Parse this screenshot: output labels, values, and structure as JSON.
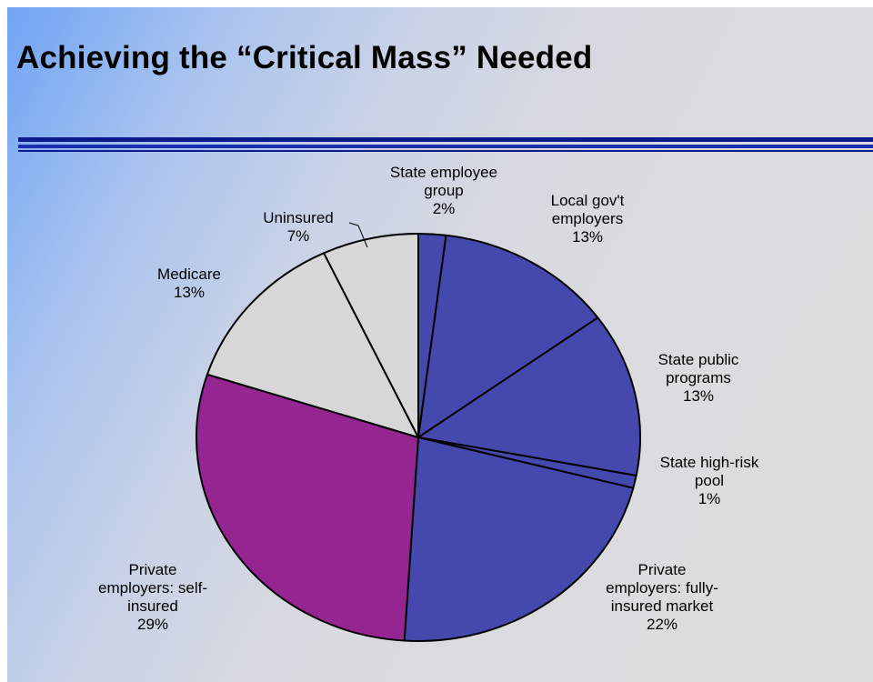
{
  "slide": {
    "title": "Achieving the “Critical Mass” Needed"
  },
  "chart_data": {
    "type": "pie",
    "title": "",
    "start_angle_deg": 0,
    "direction": "clockwise",
    "slices": [
      {
        "label": "State employee group",
        "value": 2,
        "display": "2%",
        "color": "#4549ad",
        "label_lines": [
          "State employee",
          "group",
          "2%"
        ]
      },
      {
        "label": "Local gov't employers",
        "value": 13,
        "display": "13%",
        "color": "#4549ad",
        "label_lines": [
          "Local gov't",
          "employers",
          "13%"
        ]
      },
      {
        "label": "State public programs",
        "value": 13,
        "display": "13%",
        "color": "#4549ad",
        "label_lines": [
          "State public",
          "programs",
          "13%"
        ]
      },
      {
        "label": "State high-risk pool",
        "value": 1,
        "display": "1%",
        "color": "#4549ad",
        "label_lines": [
          "State high-risk",
          "pool",
          "1%"
        ]
      },
      {
        "label": "Private employers: fully-insured market",
        "value": 22,
        "display": "22%",
        "color": "#4549ad",
        "label_lines": [
          "Private",
          "employers: fully-",
          "insured market",
          "22%"
        ]
      },
      {
        "label": "Private employers: self-insured",
        "value": 29,
        "display": "29%",
        "color": "#952591",
        "label_lines": [
          "Private",
          "employers: self-",
          "insured",
          "29%"
        ]
      },
      {
        "label": "Medicare",
        "value": 13,
        "display": "13%",
        "color": "#d7d7d7",
        "label_lines": [
          "Medicare",
          "13%"
        ]
      },
      {
        "label": "Uninsured",
        "value": 7,
        "display": "7%",
        "color": "#d7d7d7",
        "label_lines": [
          "Uninsured",
          "7%"
        ]
      }
    ]
  }
}
